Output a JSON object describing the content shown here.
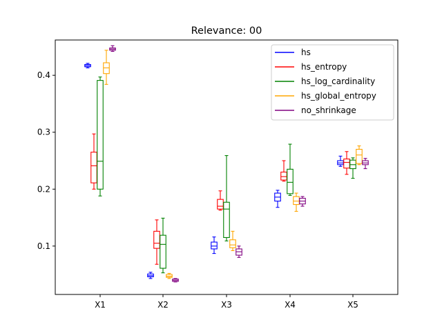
{
  "chart_data": {
    "type": "box",
    "title": "Relevance: 00",
    "xlabel": "",
    "ylabel": "",
    "ylim": [
      0.015,
      0.462
    ],
    "y_ticks": [
      0.1,
      0.2,
      0.3,
      0.4
    ],
    "y_tick_labels": [
      "0.1",
      "0.2",
      "0.3",
      "0.4"
    ],
    "categories": [
      "X1",
      "X2",
      "X3",
      "X4",
      "X5"
    ],
    "legend_position": "top-right",
    "series": [
      {
        "name": "hs",
        "color": "#0000ff",
        "boxes": [
          {
            "whislo": 0.413,
            "q1": 0.415,
            "med": 0.417,
            "q3": 0.419,
            "whishi": 0.421
          },
          {
            "whislo": 0.043,
            "q1": 0.046,
            "med": 0.048,
            "q3": 0.051,
            "whishi": 0.054
          },
          {
            "whislo": 0.087,
            "q1": 0.095,
            "med": 0.1,
            "q3": 0.107,
            "whishi": 0.116
          },
          {
            "whislo": 0.168,
            "q1": 0.179,
            "med": 0.186,
            "q3": 0.193,
            "whishi": 0.198
          },
          {
            "whislo": 0.24,
            "q1": 0.243,
            "med": 0.246,
            "q3": 0.25,
            "whishi": 0.258
          }
        ]
      },
      {
        "name": "hs_entropy",
        "color": "#ff0000",
        "boxes": [
          {
            "whislo": 0.2,
            "q1": 0.211,
            "med": 0.241,
            "q3": 0.265,
            "whishi": 0.297
          },
          {
            "whislo": 0.068,
            "q1": 0.096,
            "med": 0.105,
            "q3": 0.126,
            "whishi": 0.146
          },
          {
            "whislo": 0.163,
            "q1": 0.165,
            "med": 0.17,
            "q3": 0.182,
            "whishi": 0.197
          },
          {
            "whislo": 0.214,
            "q1": 0.216,
            "med": 0.222,
            "q3": 0.23,
            "whishi": 0.25
          },
          {
            "whislo": 0.226,
            "q1": 0.237,
            "med": 0.247,
            "q3": 0.253,
            "whishi": 0.266
          }
        ]
      },
      {
        "name": "hs_log_cardinality",
        "color": "#008000",
        "boxes": [
          {
            "whislo": 0.188,
            "q1": 0.2,
            "med": 0.249,
            "q3": 0.391,
            "whishi": 0.397
          },
          {
            "whislo": 0.053,
            "q1": 0.061,
            "med": 0.103,
            "q3": 0.119,
            "whishi": 0.149
          },
          {
            "whislo": 0.109,
            "q1": 0.115,
            "med": 0.165,
            "q3": 0.177,
            "whishi": 0.259
          },
          {
            "whislo": 0.189,
            "q1": 0.192,
            "med": 0.212,
            "q3": 0.235,
            "whishi": 0.279
          },
          {
            "whislo": 0.219,
            "q1": 0.236,
            "med": 0.243,
            "q3": 0.251,
            "whishi": 0.255
          }
        ]
      },
      {
        "name": "hs_global_entropy",
        "color": "#ffa500",
        "boxes": [
          {
            "whislo": 0.384,
            "q1": 0.403,
            "med": 0.413,
            "q3": 0.422,
            "whishi": 0.444
          },
          {
            "whislo": 0.043,
            "q1": 0.045,
            "med": 0.047,
            "q3": 0.05,
            "whishi": 0.052
          },
          {
            "whislo": 0.092,
            "q1": 0.097,
            "med": 0.102,
            "q3": 0.111,
            "whishi": 0.126
          },
          {
            "whislo": 0.161,
            "q1": 0.173,
            "med": 0.179,
            "q3": 0.187,
            "whishi": 0.193
          },
          {
            "whislo": 0.243,
            "q1": 0.245,
            "med": 0.26,
            "q3": 0.27,
            "whishi": 0.276
          }
        ]
      },
      {
        "name": "no_shrinkage",
        "color": "#800080",
        "boxes": [
          {
            "whislo": 0.442,
            "q1": 0.444,
            "med": 0.446,
            "q3": 0.448,
            "whishi": 0.452
          },
          {
            "whislo": 0.037,
            "q1": 0.038,
            "med": 0.04,
            "q3": 0.042,
            "whishi": 0.043
          },
          {
            "whislo": 0.08,
            "q1": 0.084,
            "med": 0.09,
            "q3": 0.095,
            "whishi": 0.1
          },
          {
            "whislo": 0.17,
            "q1": 0.174,
            "med": 0.179,
            "q3": 0.184,
            "whishi": 0.187
          },
          {
            "whislo": 0.236,
            "q1": 0.243,
            "med": 0.246,
            "q3": 0.25,
            "whishi": 0.254
          }
        ]
      }
    ]
  }
}
